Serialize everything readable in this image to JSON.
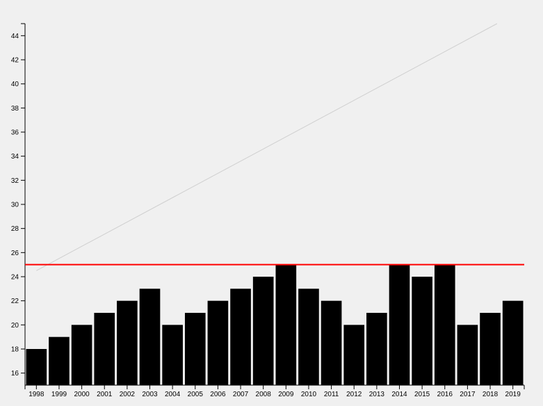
{
  "chart_data": {
    "type": "bar",
    "title": "",
    "xlabel": "",
    "ylabel": "",
    "categories": [
      "1998",
      "1999",
      "2000",
      "2001",
      "2002",
      "2003",
      "2004",
      "2005",
      "2006",
      "2007",
      "2008",
      "2009",
      "2010",
      "2011",
      "2012",
      "2013",
      "2014",
      "2015",
      "2016",
      "2017",
      "2018",
      "2019"
    ],
    "values": [
      18,
      19,
      20,
      21,
      22,
      23,
      20,
      21,
      22,
      23,
      24,
      25,
      23,
      22,
      20,
      21,
      25,
      24,
      25,
      20,
      21,
      22
    ],
    "ylim": [
      15,
      45
    ],
    "yticks": [
      16,
      18,
      20,
      22,
      24,
      26,
      28,
      30,
      32,
      34,
      36,
      38,
      40,
      42,
      44
    ],
    "reference_line": {
      "y": 25,
      "color": "#ff0000"
    },
    "trend_line": {
      "from": [
        1998,
        24.5
      ],
      "to": [
        2019,
        45
      ]
    },
    "bar_color": "#000000",
    "grid": false,
    "legend": "none"
  }
}
